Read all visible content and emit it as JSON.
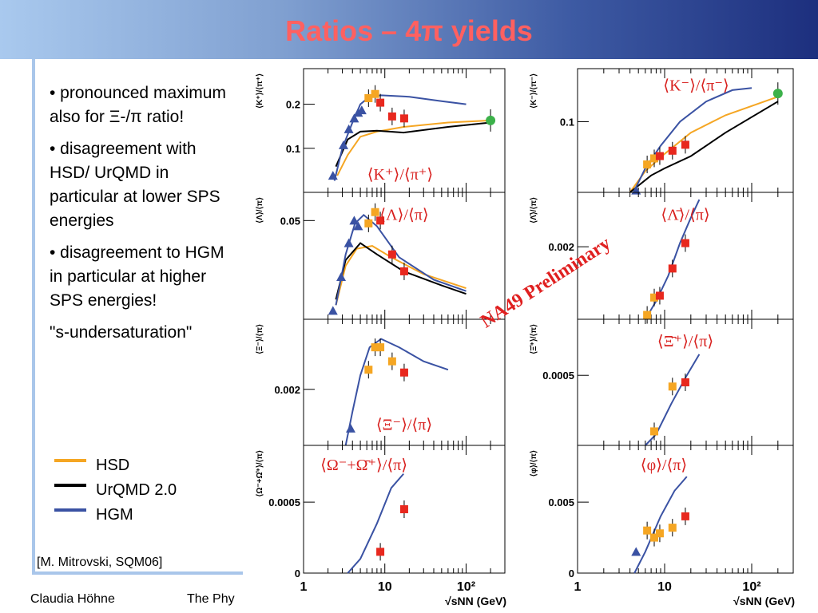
{
  "slide": {
    "title": "Ratios – 4π yields",
    "bullets": [
      "• pronounced maximum also for Ξ-/π ratio!",
      "• disagreement with HSD/ UrQMD in particular at lower SPS energies",
      "• disagreement to HGM in particular at higher SPS energies!",
      "\"s-undersaturation\""
    ],
    "legend": [
      {
        "label": "HSD",
        "color": "#f5a623"
      },
      {
        "label": "UrQMD 2.0",
        "color": "#000000"
      },
      {
        "label": "HGM",
        "color": "#3a52a3"
      }
    ],
    "reference": "[M. Mitrovski, SQM06]",
    "footer_author": "Claudia Höhne",
    "footer_conference": "The Phy",
    "watermark": "NA49 Preliminary",
    "colors": {
      "accent_title": "#ff6060",
      "data_red": "#e8281e",
      "data_orange": "#f5a623",
      "data_blue": "#3a52a3",
      "data_green": "#3cb14a"
    }
  },
  "chart_data": [
    {
      "type": "scatter",
      "column": "left",
      "row": 0,
      "ylabel": "⟨K⁺⟩/⟨π⁺⟩",
      "panel_label": "⟨K⁺⟩/⟨π⁺⟩",
      "xscale": "log",
      "xlim": [
        1,
        300
      ],
      "yscale": "log",
      "ylim": [
        0.05,
        0.35
      ],
      "yticks": [
        {
          "v": 0.1,
          "l": "0.1"
        },
        {
          "v": 0.2,
          "l": "0.2"
        }
      ],
      "series": [
        {
          "kind": "points",
          "marker": "triangle",
          "color": "#3a52a3",
          "data": [
            [
              2.3,
              0.065
            ],
            [
              3.1,
              0.105
            ],
            [
              3.6,
              0.135
            ],
            [
              4.2,
              0.16
            ],
            [
              4.7,
              0.175
            ],
            [
              5.2,
              0.182
            ]
          ]
        },
        {
          "kind": "points",
          "marker": "square",
          "color": "#f5a623",
          "data": [
            [
              6.3,
              0.22
            ],
            [
              7.6,
              0.235
            ]
          ]
        },
        {
          "kind": "points",
          "marker": "square",
          "color": "#e8281e",
          "data": [
            [
              8.8,
              0.205
            ],
            [
              12.3,
              0.165
            ],
            [
              17.3,
              0.16
            ]
          ]
        },
        {
          "kind": "points",
          "marker": "circle",
          "color": "#3cb14a",
          "data": [
            [
              200,
              0.155
            ]
          ]
        },
        {
          "kind": "line",
          "name": "HSD",
          "color": "#f5a623",
          "data": [
            [
              2.6,
              0.065
            ],
            [
              3.5,
              0.09
            ],
            [
              5,
              0.12
            ],
            [
              8,
              0.13
            ],
            [
              17,
              0.14
            ],
            [
              60,
              0.15
            ],
            [
              200,
              0.155
            ]
          ]
        },
        {
          "kind": "line",
          "name": "UrQMD 2.0",
          "color": "#000000",
          "data": [
            [
              2.5,
              0.075
            ],
            [
              3.5,
              0.115
            ],
            [
              5,
              0.13
            ],
            [
              8,
              0.132
            ],
            [
              17,
              0.128
            ],
            [
              60,
              0.14
            ],
            [
              200,
              0.15
            ]
          ]
        },
        {
          "kind": "line",
          "name": "HGM",
          "color": "#3a52a3",
          "data": [
            [
              2.4,
              0.06
            ],
            [
              3,
              0.1
            ],
            [
              4,
              0.15
            ],
            [
              5,
              0.2
            ],
            [
              6.5,
              0.225
            ],
            [
              9,
              0.23
            ],
            [
              20,
              0.225
            ],
            [
              50,
              0.21
            ],
            [
              100,
              0.2
            ]
          ]
        }
      ]
    },
    {
      "type": "scatter",
      "column": "right",
      "row": 0,
      "ylabel": "⟨K⁻⟩/⟨π⁻⟩",
      "panel_label": "⟨K⁻⟩/⟨π⁻⟩",
      "xscale": "log",
      "xlim": [
        1,
        300
      ],
      "yscale": "log",
      "ylim": [
        0.035,
        0.22
      ],
      "yticks": [
        {
          "v": 0.1,
          "l": "0.1"
        }
      ],
      "series": [
        {
          "kind": "points",
          "marker": "triangle",
          "color": "#3a52a3",
          "data": [
            [
              4.7,
              0.036
            ]
          ]
        },
        {
          "kind": "points",
          "marker": "square",
          "color": "#f5a623",
          "data": [
            [
              6.3,
              0.053
            ],
            [
              7.6,
              0.058
            ]
          ]
        },
        {
          "kind": "points",
          "marker": "square",
          "color": "#e8281e",
          "data": [
            [
              8.8,
              0.06
            ],
            [
              12.3,
              0.065
            ],
            [
              17.3,
              0.071
            ]
          ]
        },
        {
          "kind": "points",
          "marker": "circle",
          "color": "#3cb14a",
          "data": [
            [
              200,
              0.152
            ]
          ]
        },
        {
          "kind": "line",
          "name": "HSD",
          "color": "#f5a623",
          "data": [
            [
              4,
              0.035
            ],
            [
              6,
              0.048
            ],
            [
              10,
              0.062
            ],
            [
              20,
              0.085
            ],
            [
              50,
              0.11
            ],
            [
              200,
              0.145
            ]
          ]
        },
        {
          "kind": "line",
          "name": "UrQMD 2.0",
          "color": "#000000",
          "data": [
            [
              4,
              0.035
            ],
            [
              7,
              0.045
            ],
            [
              10,
              0.05
            ],
            [
              20,
              0.06
            ],
            [
              50,
              0.085
            ],
            [
              200,
              0.135
            ]
          ]
        },
        {
          "kind": "line",
          "name": "HGM",
          "color": "#3a52a3",
          "data": [
            [
              4.5,
              0.036
            ],
            [
              6,
              0.05
            ],
            [
              9,
              0.07
            ],
            [
              15,
              0.1
            ],
            [
              30,
              0.135
            ],
            [
              60,
              0.16
            ],
            [
              100,
              0.165
            ]
          ]
        }
      ]
    },
    {
      "type": "scatter",
      "column": "left",
      "row": 1,
      "ylabel": "⟨Λ⟩/⟨π⟩",
      "panel_label": "⟨Λ⟩/⟨π⟩",
      "xscale": "log",
      "xlim": [
        1,
        300
      ],
      "yscale": "linear",
      "ylim": [
        0.015,
        0.06
      ],
      "yticks": [
        {
          "v": 0.05,
          "l": "0.05"
        }
      ],
      "series": [
        {
          "kind": "points",
          "marker": "triangle",
          "color": "#3a52a3",
          "data": [
            [
              2.3,
              0.018
            ],
            [
              2.9,
              0.03
            ],
            [
              3.6,
              0.042
            ],
            [
              4.2,
              0.05
            ],
            [
              4.7,
              0.048
            ]
          ]
        },
        {
          "kind": "points",
          "marker": "square",
          "color": "#f5a623",
          "data": [
            [
              6.3,
              0.049
            ],
            [
              7.6,
              0.053
            ]
          ]
        },
        {
          "kind": "points",
          "marker": "square",
          "color": "#e8281e",
          "data": [
            [
              8.8,
              0.05
            ],
            [
              12.3,
              0.038
            ],
            [
              17.3,
              0.032
            ]
          ]
        },
        {
          "kind": "line",
          "name": "HSD",
          "color": "#f5a623",
          "data": [
            [
              2.5,
              0.02
            ],
            [
              3.3,
              0.034
            ],
            [
              4.5,
              0.04
            ],
            [
              7,
              0.041
            ],
            [
              12,
              0.037
            ],
            [
              30,
              0.031
            ],
            [
              100,
              0.026
            ]
          ]
        },
        {
          "kind": "line",
          "name": "UrQMD 2.0",
          "color": "#000000",
          "data": [
            [
              2.5,
              0.022
            ],
            [
              3.3,
              0.036
            ],
            [
              5,
              0.042
            ],
            [
              8,
              0.038
            ],
            [
              17,
              0.032
            ],
            [
              50,
              0.027
            ],
            [
              100,
              0.024
            ]
          ]
        },
        {
          "kind": "line",
          "name": "HGM",
          "color": "#3a52a3",
          "data": [
            [
              2.5,
              0.02
            ],
            [
              3.3,
              0.038
            ],
            [
              4.3,
              0.049
            ],
            [
              5.5,
              0.052
            ],
            [
              8,
              0.048
            ],
            [
              15,
              0.037
            ],
            [
              40,
              0.029
            ],
            [
              100,
              0.025
            ]
          ]
        }
      ]
    },
    {
      "type": "scatter",
      "column": "right",
      "row": 1,
      "ylabel": "⟨Λ̄⟩/⟨π⟩",
      "panel_label": "⟨Λ̄⟩/⟨π⟩",
      "xscale": "log",
      "xlim": [
        1,
        300
      ],
      "yscale": "linear",
      "ylim": [
        0,
        0.0035
      ],
      "yticks": [
        {
          "v": 0.002,
          "l": "0.002"
        }
      ],
      "series": [
        {
          "kind": "points",
          "marker": "square",
          "color": "#f5a623",
          "data": [
            [
              6.3,
              0.00012
            ],
            [
              7.6,
              0.0006
            ]
          ]
        },
        {
          "kind": "points",
          "marker": "square",
          "color": "#e8281e",
          "data": [
            [
              8.8,
              0.00065
            ],
            [
              12.3,
              0.0014
            ],
            [
              17.3,
              0.0021
            ]
          ]
        },
        {
          "kind": "line",
          "name": "HGM",
          "color": "#3a52a3",
          "data": [
            [
              6,
              0
            ],
            [
              8,
              0.0005
            ],
            [
              11,
              0.0012
            ],
            [
              15,
              0.0021
            ],
            [
              20,
              0.0028
            ],
            [
              25,
              0.0033
            ]
          ]
        }
      ]
    },
    {
      "type": "scatter",
      "column": "left",
      "row": 2,
      "ylabel": "⟨Ξ⁻⟩/⟨π⟩",
      "panel_label": "⟨Ξ⁻⟩/⟨π⟩",
      "xscale": "log",
      "xlim": [
        1,
        300
      ],
      "yscale": "linear",
      "ylim": [
        0,
        0.0045
      ],
      "yticks": [
        {
          "v": 0.002,
          "l": "0.002"
        }
      ],
      "series": [
        {
          "kind": "points",
          "marker": "triangle",
          "color": "#3a52a3",
          "data": [
            [
              3.8,
              0.0006
            ]
          ]
        },
        {
          "kind": "points",
          "marker": "square",
          "color": "#f5a623",
          "data": [
            [
              6.3,
              0.0027
            ],
            [
              7.6,
              0.0035
            ],
            [
              8.8,
              0.0035
            ],
            [
              12.3,
              0.003
            ]
          ]
        },
        {
          "kind": "points",
          "marker": "square",
          "color": "#e8281e",
          "data": [
            [
              17.3,
              0.0026
            ]
          ]
        },
        {
          "kind": "line",
          "name": "HGM",
          "color": "#3a52a3",
          "data": [
            [
              3.3,
              0
            ],
            [
              4,
              0.0012
            ],
            [
              5,
              0.0025
            ],
            [
              6.5,
              0.0035
            ],
            [
              9,
              0.0038
            ],
            [
              15,
              0.0035
            ],
            [
              30,
              0.003
            ],
            [
              60,
              0.0027
            ]
          ]
        }
      ]
    },
    {
      "type": "scatter",
      "column": "right",
      "row": 2,
      "ylabel": "⟨Ξ̄⁺⟩/⟨π⟩",
      "panel_label": "⟨Ξ̄⁺⟩/⟨π⟩",
      "xscale": "log",
      "xlim": [
        1,
        300
      ],
      "yscale": "linear",
      "ylim": [
        0,
        0.0009
      ],
      "yticks": [
        {
          "v": 0.0005,
          "l": "0.0005"
        }
      ],
      "series": [
        {
          "kind": "points",
          "marker": "square",
          "color": "#f5a623",
          "data": [
            [
              7.6,
              0.0001
            ],
            [
              12.3,
              0.00042
            ]
          ]
        },
        {
          "kind": "points",
          "marker": "square",
          "color": "#e8281e",
          "data": [
            [
              17.3,
              0.00045
            ]
          ]
        },
        {
          "kind": "line",
          "name": "HGM",
          "color": "#3a52a3",
          "data": [
            [
              6,
              0
            ],
            [
              8,
              8e-05
            ],
            [
              12,
              0.0003
            ],
            [
              18,
              0.0005
            ],
            [
              25,
              0.00065
            ]
          ]
        }
      ]
    },
    {
      "type": "scatter",
      "column": "left",
      "row": 3,
      "ylabel": "⟨Ω⁻+Ω̄⁺⟩/⟨π⟩",
      "panel_label": "⟨Ω⁻+Ω̄⁺⟩/⟨π⟩",
      "xscale": "log",
      "xlim": [
        1,
        300
      ],
      "yscale": "linear",
      "ylim": [
        0,
        0.0009
      ],
      "yticks": [
        {
          "v": 0,
          "l": "0"
        },
        {
          "v": 0.0005,
          "l": "0.0005"
        }
      ],
      "xticks": [
        {
          "v": 1,
          "l": "1"
        },
        {
          "v": 10,
          "l": "10"
        },
        {
          "v": 100,
          "l": "10²"
        }
      ],
      "xlabel": "√sNN (GeV)",
      "series": [
        {
          "kind": "points",
          "marker": "square",
          "color": "#e8281e",
          "data": [
            [
              8.8,
              0.00015
            ],
            [
              17.3,
              0.00045
            ]
          ]
        },
        {
          "kind": "line",
          "name": "HGM",
          "color": "#3a52a3",
          "data": [
            [
              3.5,
              0
            ],
            [
              5,
              0.0001
            ],
            [
              8,
              0.00035
            ],
            [
              12,
              0.0006
            ],
            [
              17,
              0.0007
            ]
          ]
        }
      ]
    },
    {
      "type": "scatter",
      "column": "right",
      "row": 3,
      "ylabel": "⟨φ⟩/⟨π⟩",
      "panel_label": "⟨φ⟩/⟨π⟩",
      "xscale": "log",
      "xlim": [
        1,
        300
      ],
      "yscale": "linear",
      "ylim": [
        0,
        0.009
      ],
      "yticks": [
        {
          "v": 0,
          "l": "0"
        },
        {
          "v": 0.005,
          "l": "0.005"
        }
      ],
      "xticks": [
        {
          "v": 1,
          "l": "1"
        },
        {
          "v": 10,
          "l": "10"
        },
        {
          "v": 100,
          "l": "10²"
        }
      ],
      "xlabel": "√sNN (GeV)",
      "series": [
        {
          "kind": "points",
          "marker": "triangle",
          "color": "#3a52a3",
          "data": [
            [
              4.7,
              0.0015
            ]
          ]
        },
        {
          "kind": "points",
          "marker": "square",
          "color": "#f5a623",
          "data": [
            [
              6.3,
              0.003
            ],
            [
              7.6,
              0.0025
            ],
            [
              8.8,
              0.0028
            ],
            [
              12.3,
              0.0032
            ]
          ]
        },
        {
          "kind": "points",
          "marker": "square",
          "color": "#e8281e",
          "data": [
            [
              17.3,
              0.004
            ]
          ]
        },
        {
          "kind": "line",
          "name": "HGM",
          "color": "#3a52a3",
          "data": [
            [
              4.5,
              0
            ],
            [
              6,
              0.0015
            ],
            [
              9,
              0.004
            ],
            [
              13,
              0.0058
            ],
            [
              18,
              0.0068
            ]
          ]
        }
      ]
    }
  ]
}
